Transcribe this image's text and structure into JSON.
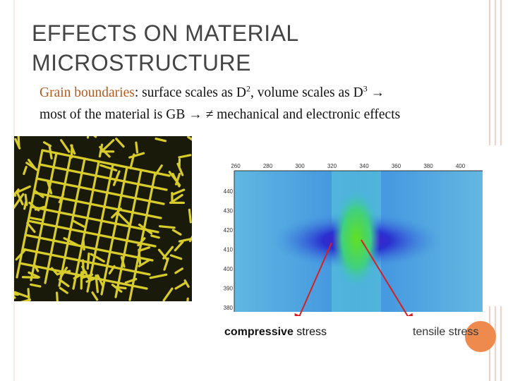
{
  "title": {
    "line_1": "EFFECTS ON MATERIAL",
    "line_2": "MICROSTRUCTURE"
  },
  "body": {
    "highlight": "Grain boundaries",
    "text_1": ": surface scales as D",
    "sup_1": "2",
    "text_2": ", volume scales as D",
    "sup_2": "3",
    "text_3": " →",
    "line_2": "most of the material is GB → ≠ mechanical and electronic effects"
  },
  "stress_map": {
    "x_labels": [
      "260",
      "280",
      "300",
      "320",
      "340",
      "360",
      "380",
      "400"
    ],
    "y_labels": [
      "440",
      "430",
      "420",
      "410",
      "400",
      "390",
      "380"
    ]
  },
  "captions": {
    "compressive_bold": "compressive",
    "compressive_rest": " stress",
    "tensile": "tensile stress"
  }
}
